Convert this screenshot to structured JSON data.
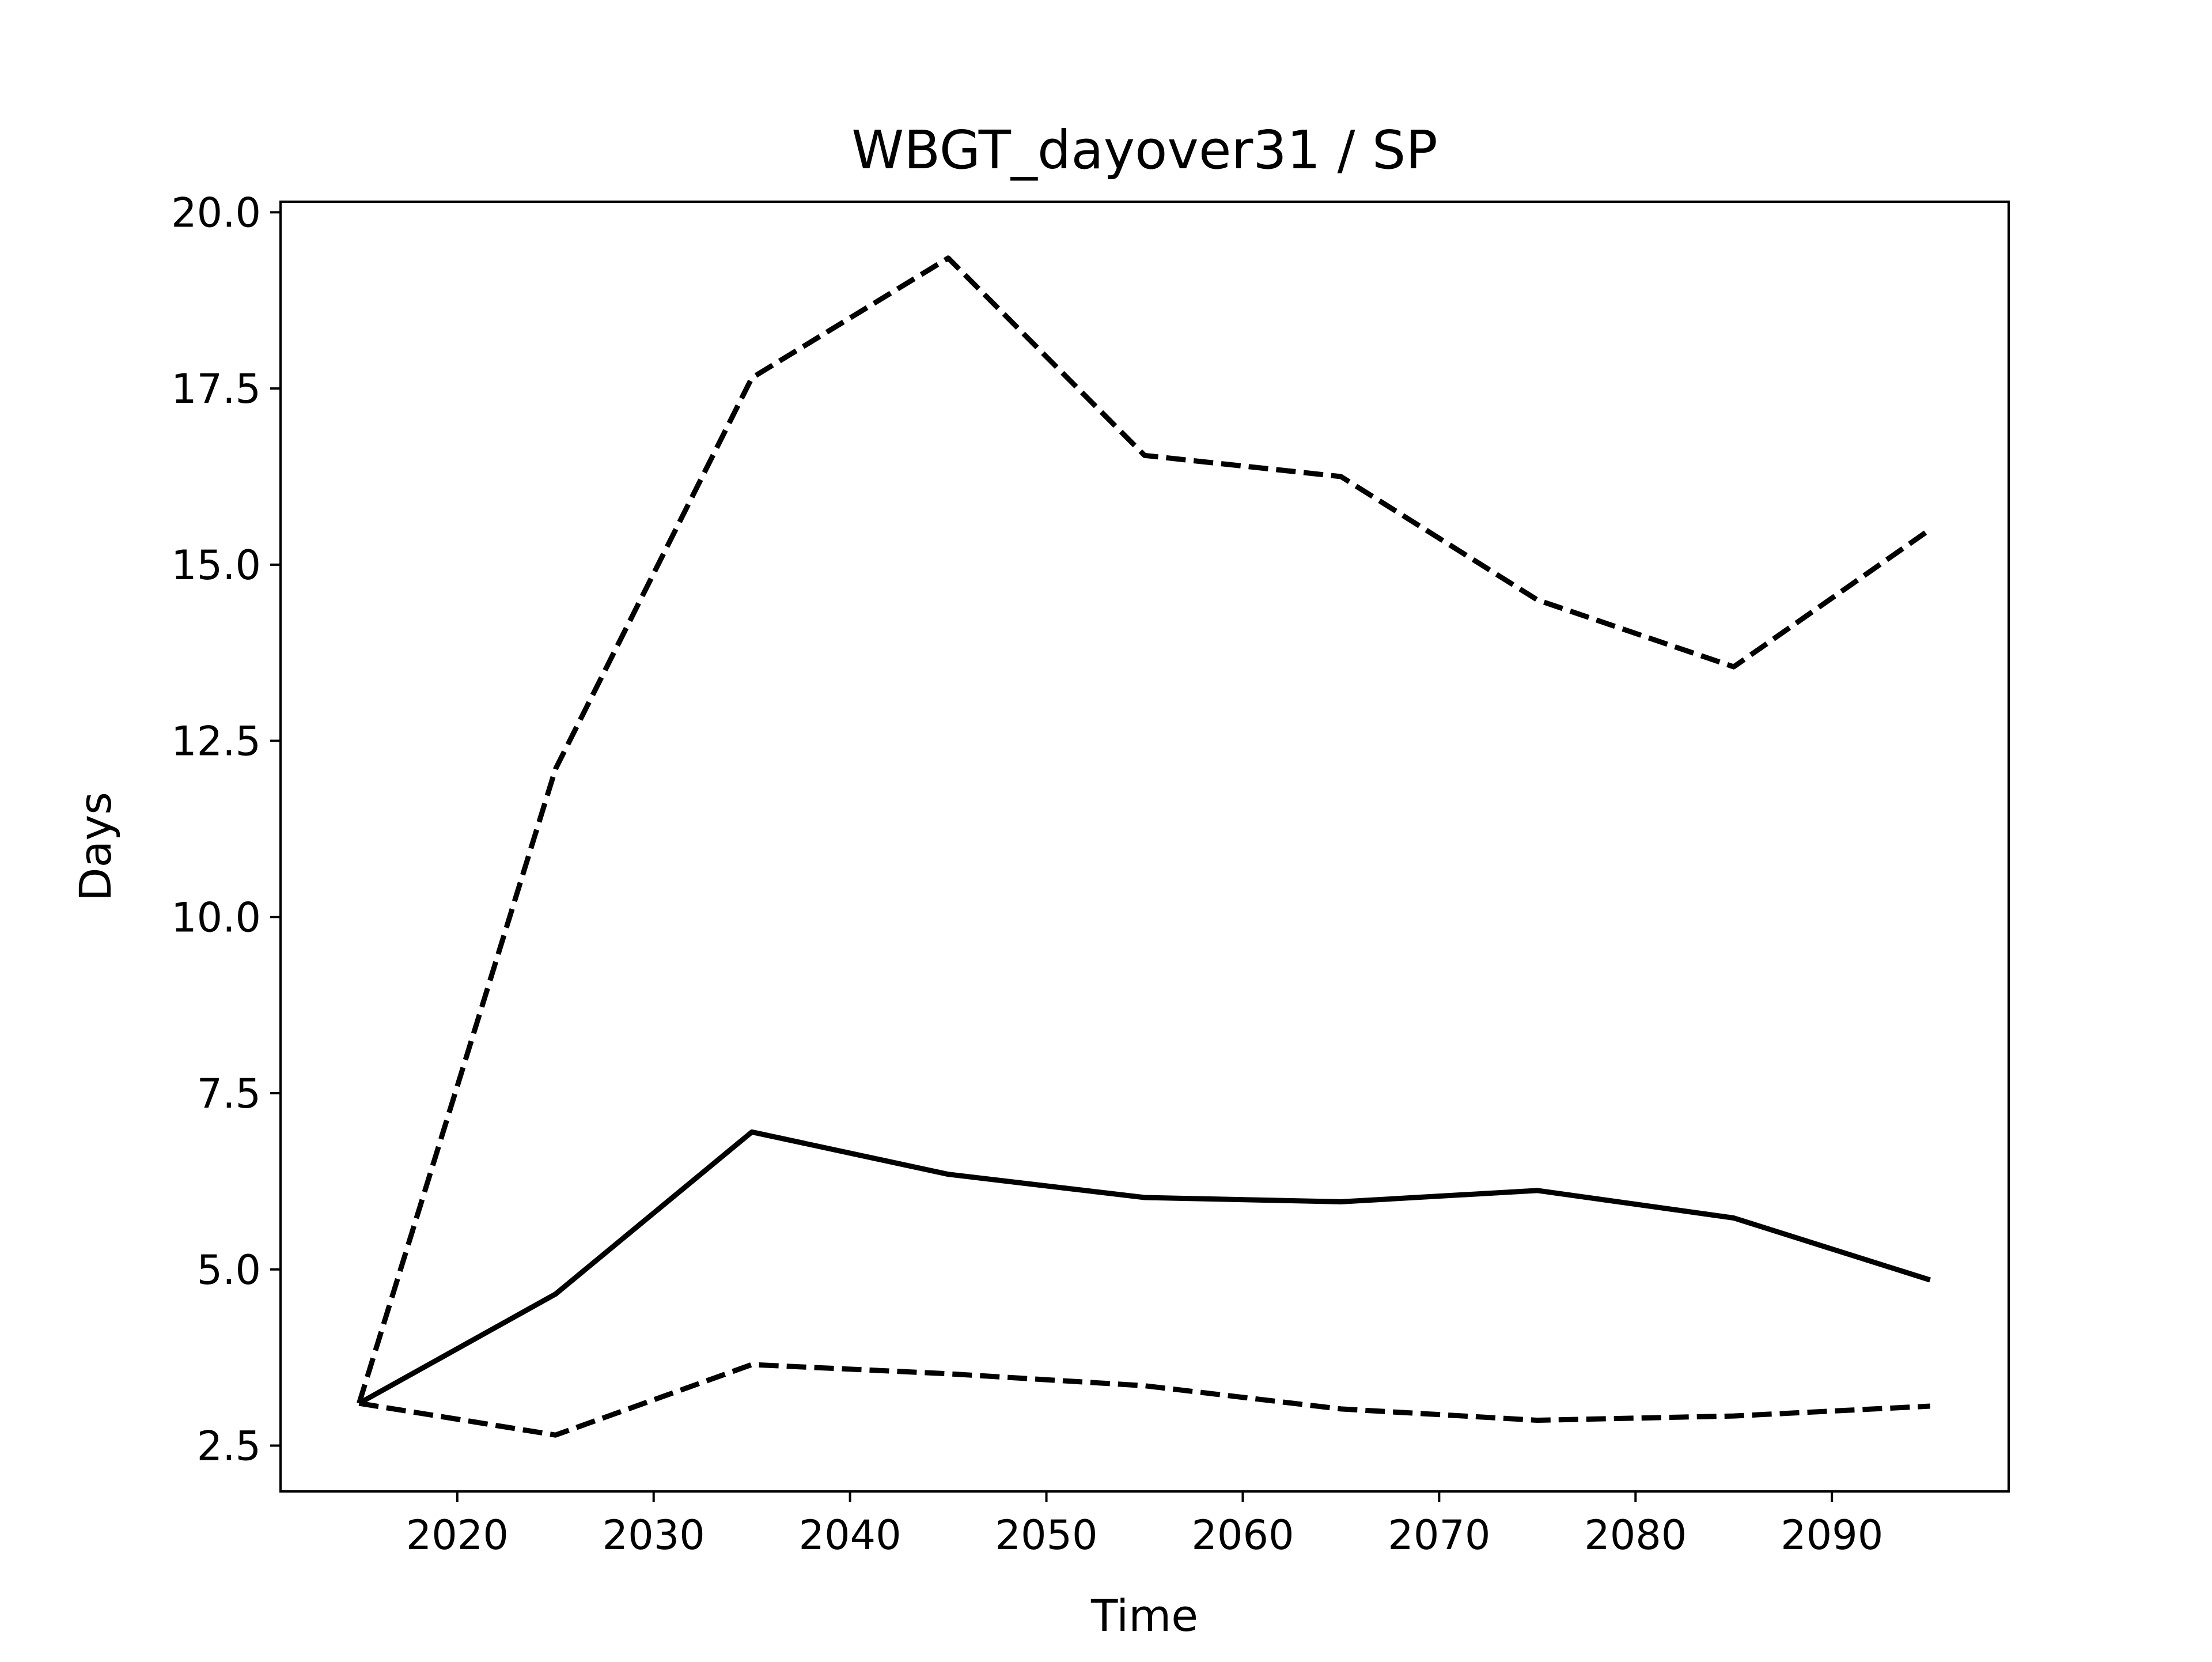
{
  "chart_data": {
    "type": "line",
    "title": "WBGT_dayover31 / SP",
    "xlabel": "Time",
    "ylabel": "Days",
    "xlim": [
      2011,
      2099
    ],
    "ylim": [
      1.85,
      20.15
    ],
    "xticks": [
      2020,
      2030,
      2040,
      2050,
      2060,
      2070,
      2080,
      2090
    ],
    "yticks": [
      2.5,
      5.0,
      7.5,
      10.0,
      12.5,
      15.0,
      17.5,
      20.0
    ],
    "xtick_labels": [
      "2020",
      "2030",
      "2040",
      "2050",
      "2060",
      "2070",
      "2080",
      "2090"
    ],
    "ytick_labels": [
      "2.5",
      "5.0",
      "7.5",
      "10.0",
      "12.5",
      "15.0",
      "17.5",
      "20.0"
    ],
    "grid": false,
    "x": [
      2015,
      2025,
      2035,
      2045,
      2055,
      2065,
      2075,
      2085,
      2095
    ],
    "series": [
      {
        "style": "dashed",
        "color": "#000000",
        "values": [
          3.1,
          12.1,
          17.65,
          19.35,
          16.55,
          16.25,
          14.5,
          13.55,
          15.5
        ]
      },
      {
        "style": "solid",
        "color": "#000000",
        "values": [
          3.1,
          4.65,
          6.95,
          6.35,
          6.02,
          5.96,
          6.12,
          5.73,
          4.85
        ]
      },
      {
        "style": "dashed",
        "color": "#000000",
        "values": [
          3.1,
          2.65,
          3.65,
          3.52,
          3.35,
          3.02,
          2.86,
          2.92,
          3.06
        ]
      }
    ]
  }
}
